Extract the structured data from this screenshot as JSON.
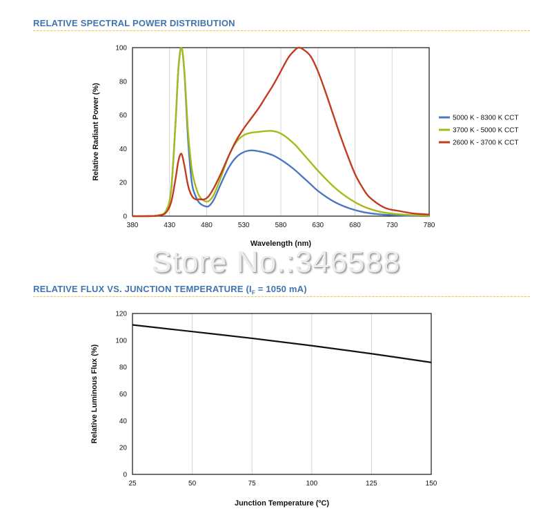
{
  "section1": {
    "title": "RELATIVE SPECTRAL POWER DISTRIBUTION"
  },
  "section2": {
    "title_main": "RELATIVE FLUX VS. JUNCTION TEMPERATURE (I",
    "title_sub": "F",
    "title_end": " = 1050 mA)"
  },
  "watermark": "Store No.:346588",
  "colors": {
    "accent_title": "#3f74b0",
    "rule": "#f2c230"
  },
  "chart_data": [
    {
      "type": "line",
      "title": "RELATIVE SPECTRAL POWER DISTRIBUTION",
      "xlabel": "Wavelength (nm)",
      "ylabel": "Relative Radiant Power (%)",
      "xlim": [
        380,
        780
      ],
      "ylim": [
        0,
        100
      ],
      "xticks": [
        380,
        430,
        480,
        530,
        580,
        630,
        680,
        730,
        780
      ],
      "yticks": [
        0,
        20,
        40,
        60,
        80,
        100
      ],
      "grid": "vertical",
      "legend": "right",
      "series": [
        {
          "name": "5000 K - 8300 K CCT",
          "color": "#4a78c0",
          "x": [
            380,
            400,
            415,
            425,
            432,
            438,
            442,
            446,
            450,
            455,
            460,
            465,
            470,
            477,
            483,
            490,
            500,
            510,
            520,
            530,
            540,
            550,
            560,
            570,
            580,
            590,
            600,
            610,
            620,
            630,
            650,
            670,
            690,
            710,
            730,
            760,
            780
          ],
          "y": [
            0,
            0,
            0.5,
            3,
            15,
            55,
            88,
            100,
            85,
            45,
            20,
            12,
            8,
            6,
            6,
            10,
            20,
            29,
            35,
            38,
            39,
            38.5,
            37.5,
            36,
            33.5,
            30.5,
            27,
            23,
            19,
            15,
            9,
            5,
            2.5,
            1.2,
            0.6,
            0.2,
            0
          ]
        },
        {
          "name": "3700 K - 5000 K CCT",
          "color": "#a8b919",
          "x": [
            380,
            400,
            415,
            425,
            432,
            438,
            442,
            446,
            450,
            455,
            460,
            465,
            470,
            477,
            483,
            490,
            500,
            510,
            520,
            530,
            540,
            550,
            560,
            570,
            580,
            590,
            600,
            610,
            620,
            630,
            650,
            670,
            690,
            710,
            730,
            760,
            780
          ],
          "y": [
            0,
            0,
            0.5,
            3,
            15,
            55,
            88,
            100,
            86,
            50,
            28,
            18,
            12,
            9,
            9,
            13,
            24,
            36,
            44,
            48,
            49.5,
            50,
            50.5,
            50.5,
            49,
            46,
            42,
            37,
            32,
            27,
            18,
            11,
            6,
            3,
            1.5,
            0.5,
            0.2
          ]
        },
        {
          "name": "2600 K - 3700 K CCT",
          "color": "#c33a1f",
          "x": [
            380,
            400,
            415,
            425,
            432,
            438,
            442,
            446,
            450,
            455,
            460,
            465,
            470,
            477,
            483,
            490,
            500,
            510,
            520,
            530,
            540,
            550,
            560,
            570,
            580,
            590,
            600,
            605,
            610,
            620,
            630,
            640,
            650,
            660,
            670,
            680,
            690,
            700,
            720,
            740,
            760,
            780
          ],
          "y": [
            0,
            0,
            0.3,
            2,
            8,
            22,
            33,
            37,
            30,
            18,
            12,
            10,
            10,
            10,
            12,
            17,
            26,
            36,
            45,
            52,
            58,
            64,
            71,
            78,
            86,
            94,
            99,
            100,
            99,
            95,
            86,
            74,
            61,
            48,
            36,
            25,
            17,
            11,
            5,
            3,
            1.5,
            1
          ]
        }
      ]
    },
    {
      "type": "line",
      "title": "RELATIVE FLUX VS. JUNCTION TEMPERATURE (IF = 1050 mA)",
      "xlabel": "Junction Temperature (ºC)",
      "ylabel": "Relative Luminous Flux (%)",
      "xlim": [
        25,
        150
      ],
      "ylim": [
        0,
        120
      ],
      "xticks": [
        25,
        50,
        75,
        100,
        125,
        150
      ],
      "yticks": [
        0,
        20,
        40,
        60,
        80,
        100,
        120
      ],
      "grid": "vertical",
      "series": [
        {
          "color": "#111111",
          "x": [
            25,
            50,
            75,
            100,
            125,
            150
          ],
          "y": [
            111.5,
            106.5,
            101.5,
            96,
            90,
            83.5
          ]
        }
      ]
    }
  ]
}
